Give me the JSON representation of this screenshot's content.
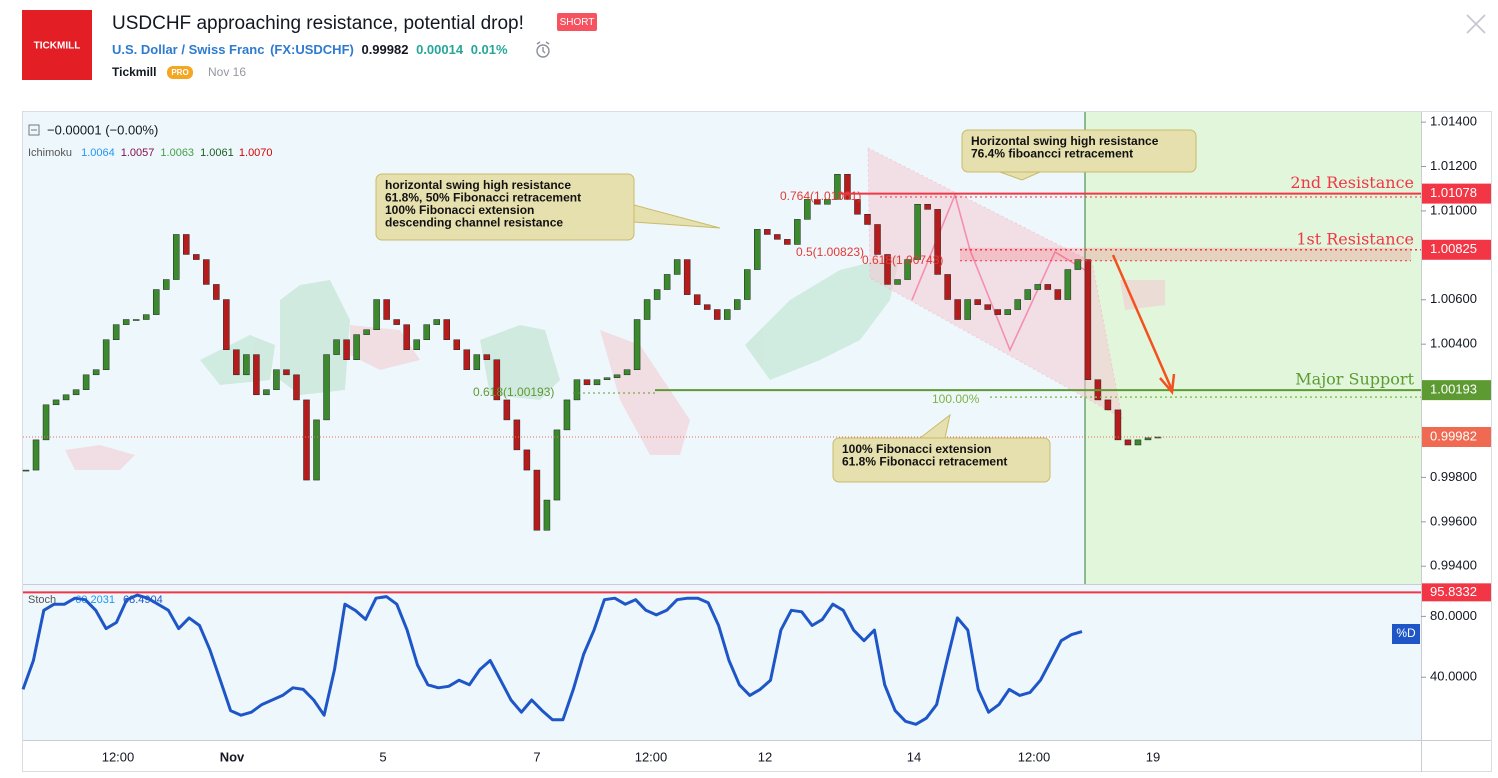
{
  "header": {
    "logo": "TICKMILL",
    "title": "USDCHF approaching resistance, potential drop!",
    "badge": "SHORT",
    "symbol_name": "U.S. Dollar / Swiss Franc",
    "symbol": "(FX:USDCHF)",
    "price": "0.99982",
    "change": "0.00014",
    "change_pct": "0.01%",
    "author": "Tickmill",
    "author_badge": "PRO",
    "date": "Nov 16"
  },
  "chart": {
    "type": "candlestick",
    "legend": {
      "change": "−0.00001 (−0.00%)",
      "indicator": "Ichimoku",
      "values": [
        {
          "text": "1.0064",
          "color": "#2196f3"
        },
        {
          "text": "1.0057",
          "color": "#880e4f"
        },
        {
          "text": "1.0063",
          "color": "#43a047"
        },
        {
          "text": "1.0061",
          "color": "#1b5e20"
        },
        {
          "text": "1.0070",
          "color": "#d50000"
        }
      ]
    },
    "price": {
      "up_color": "#3b8a2e",
      "down_color": "#b71c1c",
      "ylim": [
        0.9932,
        1.0145
      ],
      "yticks": [
        {
          "value": 1.014,
          "label": "1.01400"
        },
        {
          "value": 1.012,
          "label": "1.01200"
        },
        {
          "value": 1.01,
          "label": "1.01000"
        },
        {
          "value": 1.006,
          "label": "1.00600"
        },
        {
          "value": 1.004,
          "label": "1.00400"
        },
        {
          "value": 0.998,
          "label": "0.99800"
        },
        {
          "value": 0.996,
          "label": "0.99600"
        },
        {
          "value": 0.994,
          "label": "0.99400"
        }
      ],
      "values": [
        0.99833,
        0.99969,
        1.00127,
        1.00149,
        1.00172,
        1.00195,
        1.00262,
        1.00285,
        1.0042,
        1.00488,
        1.00511,
        1.00511,
        1.00533,
        1.00646,
        1.00691,
        1.00894,
        1.00804,
        1.00781,
        1.00669,
        1.00601,
        1.00375,
        1.00262,
        1.00353,
        1.00172,
        1.00195,
        1.00285,
        1.00262,
        1.00149,
        0.99788,
        1.00059,
        1.00353,
        1.0042,
        1.0033,
        1.00443,
        1.00465,
        1.00601,
        1.00511,
        1.00488,
        1.00375,
        1.0042,
        1.00488,
        1.00511,
        1.0042,
        1.00375,
        1.00285,
        1.00353,
        1.0033,
        1.00149,
        1.00059,
        0.99924,
        0.99833,
        0.99562,
        0.99698,
        1.00014,
        1.00149,
        1.0024,
        1.00217,
        1.0024,
        1.00249,
        1.00262,
        1.00285,
        1.00511,
        1.00601,
        1.00646,
        1.00714,
        1.00781,
        1.00623,
        1.00578,
        1.00556,
        1.00511,
        1.00556,
        1.00601,
        1.00736,
        1.00917,
        1.00894,
        1.00872,
        1.00849,
        1.00962,
        1.01052,
        1.0103,
        1.01052,
        1.01165,
        1.01052,
        1.00985,
        1.00939,
        1.00804,
        1.00669,
        1.00691,
        1.00781,
        1.0103,
        1.01007,
        1.00714,
        1.00601,
        1.00511,
        1.00601,
        1.00578,
        1.00556,
        1.00533,
        1.00556,
        1.00601,
        1.00646,
        1.00669,
        1.00646,
        1.00601,
        1.00736,
        1.00781,
        1.0024,
        1.00149,
        1.00104,
        0.99969,
        0.99946,
        0.99969,
        0.99978,
        0.99982
      ]
    },
    "levels": [
      {
        "name": "2nd Resistance",
        "value": 1.01078,
        "label": "1.01078",
        "color": "#f23645"
      },
      {
        "name": "1st Resistance",
        "value": 1.00825,
        "label": "1.00825",
        "color": "#f23645"
      },
      {
        "name": "Major Support",
        "value": 1.00193,
        "label": "1.00193",
        "color": "#5d9a32"
      }
    ],
    "current": {
      "value": 0.99982,
      "label": "0.99982",
      "color": "#ef6a50"
    },
    "fib_labels": [
      {
        "text": "0.764(1.01061)",
        "color": "#e53935"
      },
      {
        "text": "0.5(1.00823)",
        "color": "#e53935"
      },
      {
        "text": "0.618(1.00743)",
        "color": "#e53935"
      },
      {
        "text": "0.618(1.00193)",
        "color": "#5d9a32"
      },
      {
        "text": "100.00%",
        "color": "#7cb342"
      }
    ],
    "annotations": [
      {
        "lines": [
          "horizontal swing high resistance",
          "61.8%, 50% Fibonacci retracement",
          "100% Fibonacci extension",
          "descending channel resistance"
        ]
      },
      {
        "lines": [
          "Horizontal swing high resistance",
          "76.4% fiboancci retracement"
        ]
      },
      {
        "lines": [
          "100% Fibonacci extension",
          "61.8% Fibonacci retracement"
        ]
      }
    ],
    "stoch": {
      "name": "Stoch",
      "k": "60.2031",
      "d": "68.4904",
      "color": "#1e56c8",
      "d_label": "%D",
      "ylim": [
        0,
        100
      ],
      "yticks": [
        {
          "value": 80,
          "label": "80.0000"
        },
        {
          "value": 40,
          "label": "40.0000"
        }
      ],
      "level": {
        "value": 95.8332,
        "label": "95.8332",
        "color": "#f23645"
      },
      "values": [
        32,
        51,
        84,
        88,
        88,
        92,
        91,
        84,
        72,
        76,
        91,
        94,
        92,
        88,
        84,
        72,
        79,
        74,
        58,
        38,
        18,
        15,
        17,
        22,
        25,
        28,
        33,
        32,
        25,
        15,
        45,
        88,
        84,
        78,
        92,
        93,
        88,
        71,
        48,
        35,
        33,
        34,
        38,
        35,
        45,
        51,
        38,
        25,
        17,
        25,
        18,
        12,
        12,
        32,
        55,
        71,
        91,
        92,
        88,
        91,
        84,
        81,
        84,
        91,
        92,
        92,
        89,
        74,
        51,
        35,
        28,
        32,
        38,
        71,
        84,
        83,
        74,
        78,
        88,
        84,
        71,
        64,
        71,
        35,
        18,
        11,
        9,
        13,
        22,
        51,
        79,
        71,
        32,
        17,
        22,
        32,
        28,
        30,
        38,
        51,
        64,
        68,
        70
      ]
    },
    "xaxis": {
      "labels": [
        "12:00",
        "Nov",
        "5",
        "7",
        "12:00",
        "12",
        "14",
        "12:00",
        "19"
      ]
    }
  }
}
